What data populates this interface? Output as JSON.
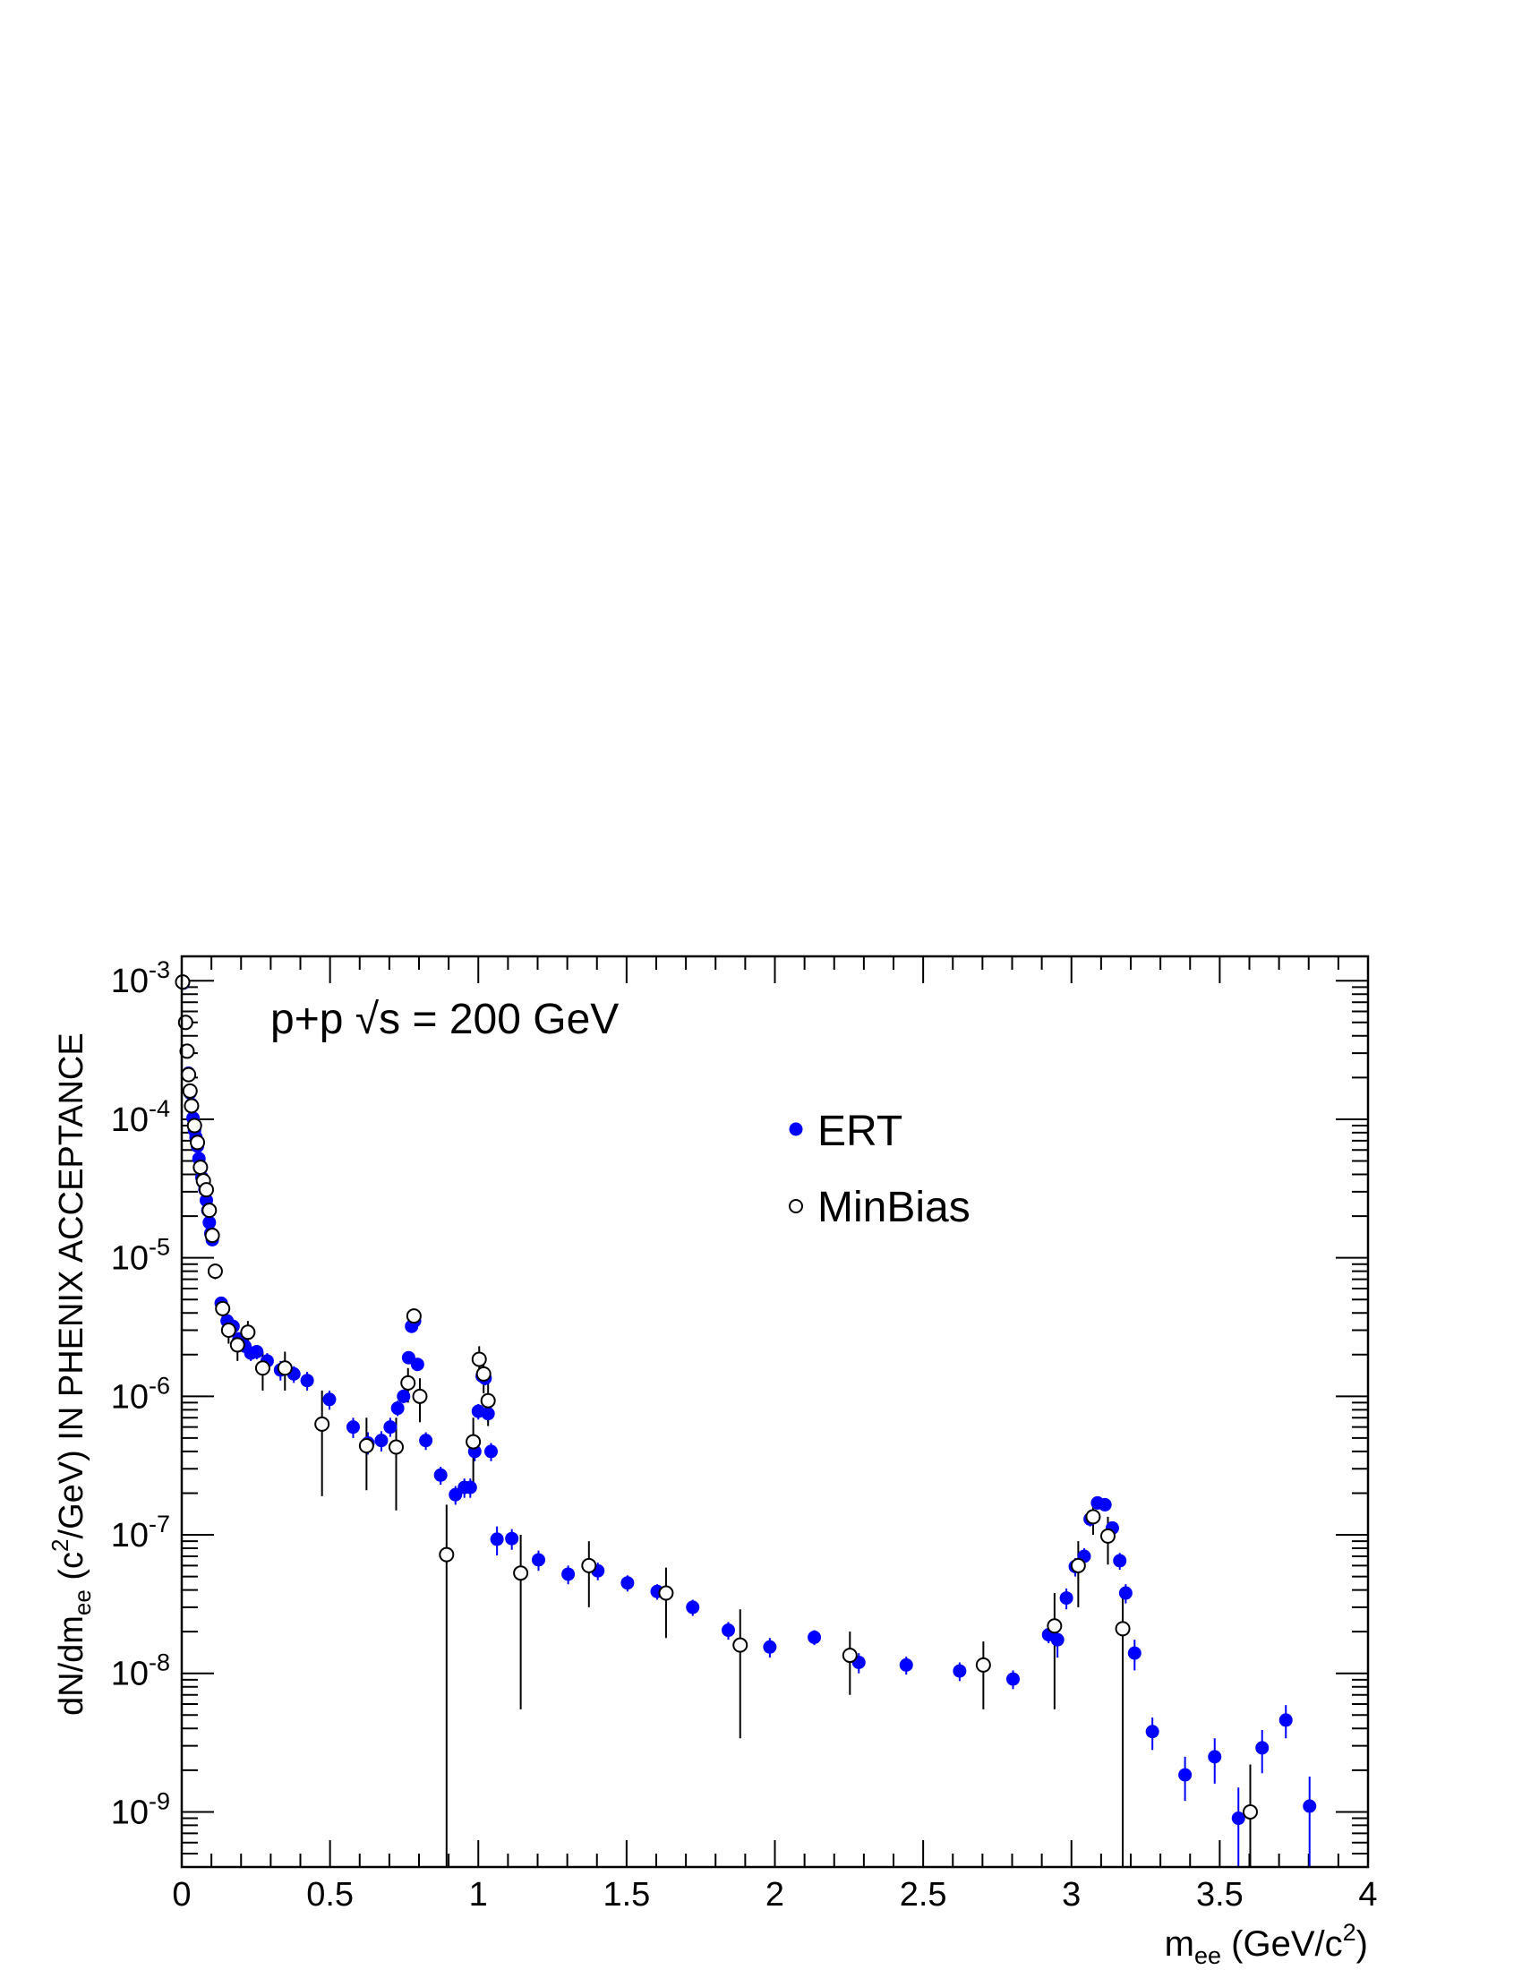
{
  "chart_data": {
    "type": "scatter",
    "annotation": {
      "label": "p+p ",
      "sqrt_symbol": "√",
      "rest": "s = 200 GeV"
    },
    "xlabel": {
      "main": "m",
      "sub": "ee",
      "unit_open": " (GeV/c",
      "sup": "2",
      "unit_close": ")"
    },
    "ylabel": {
      "p1": "dN/dm",
      "sub": "ee",
      "p2": " (c",
      "sup": "2",
      "p3": "/GeV) IN PHENIX ACCEPTANCE"
    },
    "xlim": [
      0,
      4
    ],
    "ylim": [
      4e-10,
      0.0015
    ],
    "yscale": "log",
    "grid": false,
    "legend_position": "upper-right",
    "x_ticks": [
      {
        "value": 0,
        "label": "0"
      },
      {
        "value": 0.5,
        "label": "0.5"
      },
      {
        "value": 1,
        "label": "1"
      },
      {
        "value": 1.5,
        "label": "1.5"
      },
      {
        "value": 2,
        "label": "2"
      },
      {
        "value": 2.5,
        "label": "2.5"
      },
      {
        "value": 3,
        "label": "3"
      },
      {
        "value": 3.5,
        "label": "3.5"
      },
      {
        "value": 4,
        "label": "4"
      }
    ],
    "y_ticks": [
      {
        "value": 1e-09,
        "base": "10",
        "exp": "-9"
      },
      {
        "value": 1e-08,
        "base": "10",
        "exp": "-8"
      },
      {
        "value": 1e-07,
        "base": "10",
        "exp": "-7"
      },
      {
        "value": 1e-06,
        "base": "10",
        "exp": "-6"
      },
      {
        "value": 1e-05,
        "base": "10",
        "exp": "-5"
      },
      {
        "value": 0.0001,
        "base": "10",
        "exp": "-4"
      },
      {
        "value": 0.001,
        "base": "10",
        "exp": "-3"
      }
    ],
    "series": [
      {
        "name": "ERT",
        "marker": "filled-circle",
        "color": "#0000ff",
        "points": [
          [
            0.005,
            0.00096,
            0.00106,
            0.00087
          ],
          [
            0.013,
            0.0005,
            0.00054,
            0.00046
          ],
          [
            0.018,
            0.00031,
            0.00033,
            0.00029
          ],
          [
            0.023,
            0.000215,
            0.00023,
            0.0002
          ],
          [
            0.028,
            0.000155,
            0.000165,
            0.000145
          ],
          [
            0.033,
            0.000128,
            0.000136,
            0.00012
          ],
          [
            0.038,
            0.000102,
            0.00011,
            9.5e-05
          ],
          [
            0.043,
            8.3e-05,
            8.9e-05,
            7.7e-05
          ],
          [
            0.048,
            7.4e-05,
            7.9e-05,
            6.9e-05
          ],
          [
            0.053,
            6.4e-05,
            6.9e-05,
            6e-05
          ],
          [
            0.058,
            5.2e-05,
            5.6e-05,
            4.8e-05
          ],
          [
            0.063,
            4.6e-05,
            4.9e-05,
            4.3e-05
          ],
          [
            0.068,
            3.8e-05,
            4.1e-05,
            3.5e-05
          ],
          [
            0.073,
            3.5e-05,
            3.8e-05,
            3.2e-05
          ],
          [
            0.078,
            3.1e-05,
            3.3e-05,
            2.9e-05
          ],
          [
            0.083,
            2.6e-05,
            2.8e-05,
            2.4e-05
          ],
          [
            0.088,
            2.2e-05,
            2.4e-05,
            2e-05
          ],
          [
            0.093,
            1.8e-05,
            1.95e-05,
            1.65e-05
          ],
          [
            0.098,
            1.5e-05,
            1.62e-05,
            1.38e-05
          ],
          [
            0.103,
            1.35e-05,
            1.46e-05,
            1.24e-05
          ],
          [
            0.113,
            8.1e-06,
            8.6e-06,
            7.6e-06
          ],
          [
            0.133,
            4.7e-06,
            5e-06,
            4.4e-06
          ],
          [
            0.153,
            3.5e-06,
            3.8e-06,
            3.2e-06
          ],
          [
            0.173,
            3.2e-06,
            3.5e-06,
            2.9e-06
          ],
          [
            0.193,
            2.6e-06,
            2.85e-06,
            2.35e-06
          ],
          [
            0.213,
            2.3e-06,
            2.55e-06,
            2.05e-06
          ],
          [
            0.233,
            2.05e-06,
            2.3e-06,
            1.8e-06
          ],
          [
            0.253,
            2.1e-06,
            2.35e-06,
            1.85e-06
          ],
          [
            0.288,
            1.8e-06,
            2.05e-06,
            1.55e-06
          ],
          [
            0.333,
            1.55e-06,
            1.8e-06,
            1.3e-06
          ],
          [
            0.378,
            1.45e-06,
            1.65e-06,
            1.25e-06
          ],
          [
            0.423,
            1.3e-06,
            1.5e-06,
            1.1e-06
          ],
          [
            0.498,
            9.5e-07,
            1.1e-06,
            8e-07
          ],
          [
            0.578,
            6e-07,
            7e-07,
            5e-07
          ],
          [
            0.628,
            4.6e-07,
            5.5e-07,
            3.8e-07
          ],
          [
            0.673,
            4.8e-07,
            5.6e-07,
            4e-07
          ],
          [
            0.703,
            6e-07,
            7e-07,
            5.1e-07
          ],
          [
            0.728,
            8.2e-07,
            9.3e-07,
            7.2e-07
          ],
          [
            0.748,
            1e-06,
            1.12e-06,
            8.9e-07
          ],
          [
            0.765,
            1.9e-06,
            2.05e-06,
            1.75e-06
          ],
          [
            0.775,
            3.2e-06,
            3.4e-06,
            3e-06
          ],
          [
            0.785,
            3.5e-06,
            3.7e-06,
            3.3e-06
          ],
          [
            0.795,
            1.7e-06,
            1.85e-06,
            1.55e-06
          ],
          [
            0.823,
            4.8e-07,
            5.5e-07,
            4.1e-07
          ],
          [
            0.873,
            2.7e-07,
            3.1e-07,
            2.3e-07
          ],
          [
            0.923,
            1.95e-07,
            2.25e-07,
            1.65e-07
          ],
          [
            0.953,
            2.2e-07,
            2.55e-07,
            1.85e-07
          ],
          [
            0.973,
            2.2e-07,
            2.55e-07,
            1.85e-07
          ],
          [
            0.988,
            4e-07,
            4.6e-07,
            3.4e-07
          ],
          [
            1.0,
            7.8e-07,
            8.8e-07,
            6.8e-07
          ],
          [
            1.013,
            1.4e-06,
            1.55e-06,
            1.25e-06
          ],
          [
            1.023,
            1.35e-06,
            1.5e-06,
            1.2e-06
          ],
          [
            1.033,
            7.5e-07,
            8.5e-07,
            6.5e-07
          ],
          [
            1.043,
            4e-07,
            4.6e-07,
            3.4e-07
          ],
          [
            1.063,
            9.3e-08,
            1.15e-07,
            7.1e-08
          ],
          [
            1.113,
            9.4e-08,
            1.1e-07,
            7.8e-08
          ],
          [
            1.203,
            6.6e-08,
            7.7e-08,
            5.5e-08
          ],
          [
            1.303,
            5.2e-08,
            6e-08,
            4.4e-08
          ],
          [
            1.403,
            5.5e-08,
            6.3e-08,
            4.7e-08
          ],
          [
            1.503,
            4.5e-08,
            5.1e-08,
            3.9e-08
          ],
          [
            1.603,
            3.9e-08,
            4.4e-08,
            3.4e-08
          ],
          [
            1.723,
            3e-08,
            3.4e-08,
            2.6e-08
          ],
          [
            1.843,
            2.05e-08,
            2.35e-08,
            1.75e-08
          ],
          [
            1.983,
            1.55e-08,
            1.8e-08,
            1.3e-08
          ],
          [
            2.133,
            1.82e-08,
            2.05e-08,
            1.6e-08
          ],
          [
            2.283,
            1.2e-08,
            1.4e-08,
            1e-08
          ],
          [
            2.443,
            1.15e-08,
            1.32e-08,
            9.8e-09
          ],
          [
            2.623,
            1.04e-08,
            1.2e-08,
            8.8e-09
          ],
          [
            2.803,
            9.1e-09,
            1.05e-08,
            7.7e-09
          ],
          [
            2.923,
            1.9e-08,
            2.15e-08,
            1.65e-08
          ],
          [
            2.953,
            1.75e-08,
            2.2e-08,
            1.3e-08
          ],
          [
            2.983,
            3.5e-08,
            4.1e-08,
            2.9e-08
          ],
          [
            3.013,
            5.9e-08,
            6.8e-08,
            5e-08
          ],
          [
            3.043,
            7e-08,
            8e-08,
            6e-08
          ],
          [
            3.063,
            1.3e-07,
            1.45e-07,
            1.15e-07
          ],
          [
            3.088,
            1.7e-07,
            1.85e-07,
            1.55e-07
          ],
          [
            3.113,
            1.65e-07,
            1.8e-07,
            1.5e-07
          ],
          [
            3.138,
            1.12e-07,
            1.25e-07,
            9.9e-08
          ],
          [
            3.163,
            6.5e-08,
            7.4e-08,
            5.6e-08
          ],
          [
            3.183,
            3.8e-08,
            4.4e-08,
            3.2e-08
          ],
          [
            3.213,
            1.4e-08,
            1.75e-08,
            1.05e-08
          ],
          [
            3.273,
            3.8e-09,
            4.8e-09,
            2.8e-09
          ],
          [
            3.383,
            1.85e-09,
            2.5e-09,
            1.2e-09
          ],
          [
            3.483,
            2.5e-09,
            3.4e-09,
            1.6e-09
          ],
          [
            3.563,
            9e-10,
            1.5e-09,
            3e-10
          ],
          [
            3.643,
            2.9e-09,
            3.9e-09,
            1.9e-09
          ],
          [
            3.723,
            4.6e-09,
            5.9e-09,
            3.4e-09
          ],
          [
            3.803,
            1.1e-09,
            1.8e-09,
            3e-10
          ]
        ]
      },
      {
        "name": "MinBias",
        "marker": "open-circle",
        "color": "#000000",
        "points": [
          [
            0.003,
            0.00098,
            0.00108,
            0.00088
          ],
          [
            0.013,
            0.0005,
            0.00055,
            0.00045
          ],
          [
            0.018,
            0.00031,
            0.00034,
            0.00028
          ],
          [
            0.023,
            0.00021,
            0.00023,
            0.00019
          ],
          [
            0.028,
            0.00016,
            0.000175,
            0.000145
          ],
          [
            0.033,
            0.000125,
            0.000138,
            0.000112
          ],
          [
            0.043,
            9e-05,
            0.0001,
            8e-05
          ],
          [
            0.053,
            6.8e-05,
            7.5e-05,
            6.1e-05
          ],
          [
            0.063,
            4.5e-05,
            5e-05,
            4e-05
          ],
          [
            0.073,
            3.6e-05,
            4e-05,
            3.2e-05
          ],
          [
            0.083,
            3.1e-05,
            3.5e-05,
            2.7e-05
          ],
          [
            0.093,
            2.2e-05,
            2.5e-05,
            1.9e-05
          ],
          [
            0.103,
            1.45e-05,
            1.65e-05,
            1.25e-05
          ],
          [
            0.113,
            8e-06,
            9e-06,
            7e-06
          ],
          [
            0.138,
            4.3e-06,
            5e-06,
            3.6e-06
          ],
          [
            0.158,
            3e-06,
            3.6e-06,
            2.4e-06
          ],
          [
            0.188,
            2.35e-06,
            2.9e-06,
            1.8e-06
          ],
          [
            0.223,
            2.9e-06,
            3.5e-06,
            2.3e-06
          ],
          [
            0.273,
            1.6e-06,
            2.1e-06,
            1.1e-06
          ],
          [
            0.348,
            1.6e-06,
            2.1e-06,
            1.1e-06
          ],
          [
            0.473,
            6.3e-07,
            1.1e-06,
            1.9e-07
          ],
          [
            0.623,
            4.4e-07,
            7e-07,
            2.1e-07
          ],
          [
            0.723,
            4.3e-07,
            7e-07,
            1.5e-07
          ],
          [
            0.763,
            1.25e-06,
            1.6e-06,
            9e-07
          ],
          [
            0.783,
            3.8e-06,
            4.2e-06,
            3.4e-06
          ],
          [
            0.803,
            1e-06,
            1.35e-06,
            6.5e-07
          ],
          [
            0.893,
            7.2e-08,
            1.65e-07,
            3e-10
          ],
          [
            0.983,
            4.7e-07,
            7e-07,
            2.4e-07
          ],
          [
            1.003,
            1.85e-06,
            2.3e-06,
            1.4e-06
          ],
          [
            1.018,
            1.45e-06,
            1.85e-06,
            1.05e-06
          ],
          [
            1.033,
            9.3e-07,
            1.25e-06,
            6.1e-07
          ],
          [
            1.143,
            5.3e-08,
            1e-07,
            5.5e-09
          ],
          [
            1.373,
            6e-08,
            9e-08,
            3e-08
          ],
          [
            1.633,
            3.8e-08,
            5.8e-08,
            1.8e-08
          ],
          [
            1.883,
            1.6e-08,
            2.9e-08,
            3.4e-09
          ],
          [
            2.253,
            1.35e-08,
            2e-08,
            7e-09
          ],
          [
            2.703,
            1.15e-08,
            1.7e-08,
            5.5e-09
          ],
          [
            2.943,
            2.2e-08,
            3.8e-08,
            5.5e-09
          ],
          [
            3.023,
            6e-08,
            9e-08,
            3e-08
          ],
          [
            3.073,
            1.35e-07,
            1.7e-07,
            1e-07
          ],
          [
            3.123,
            9.8e-08,
            1.35e-07,
            6.1e-08
          ],
          [
            3.173,
            2.1e-08,
            4e-08,
            3e-10
          ],
          [
            3.603,
            1e-09,
            2.2e-09,
            3e-10
          ]
        ]
      }
    ]
  }
}
